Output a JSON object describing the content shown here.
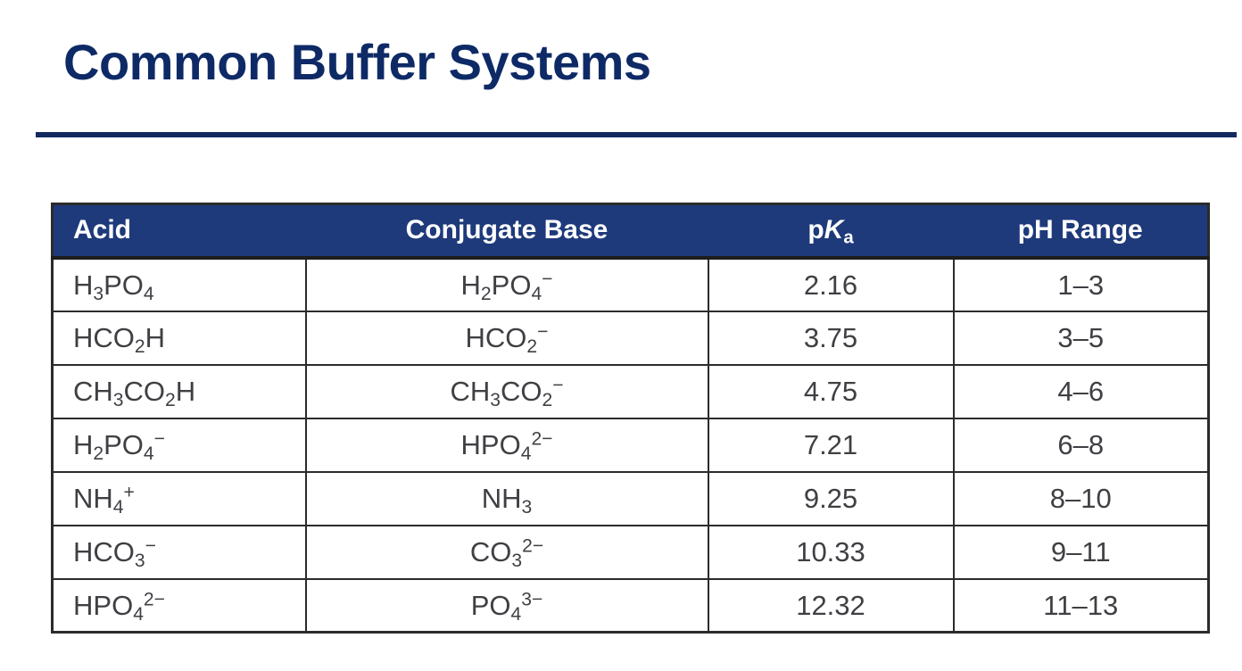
{
  "title": "Common Buffer Systems",
  "colors": {
    "navy_header": "#1e3a7b",
    "title_navy": "#0e2a66",
    "divider_navy": "#132a60",
    "body_text": "#3f3f44",
    "grid_line": "#2b2b2b",
    "header_text": "#ffffff"
  },
  "table": {
    "columns": [
      {
        "key": "acid",
        "label": "Acid",
        "align": "left"
      },
      {
        "key": "conjugate_base",
        "label": "Conjugate Base",
        "align": "center"
      },
      {
        "key": "pka",
        "label": "p*K*_a",
        "align": "center"
      },
      {
        "key": "ph_range",
        "label": "pH Range",
        "align": "center"
      }
    ],
    "rows": [
      {
        "acid": "H_3PO_4",
        "conjugate_base": "H_2PO_4^{−}",
        "pka": "2.16",
        "ph_range": "1–3"
      },
      {
        "acid": "HCO_2H",
        "conjugate_base": "HCO_2^{−}",
        "pka": "3.75",
        "ph_range": "3–5"
      },
      {
        "acid": "CH_3CO_2H",
        "conjugate_base": "CH_3CO_2^{−}",
        "pka": "4.75",
        "ph_range": "4–6"
      },
      {
        "acid": "H_2PO_4^{−}",
        "conjugate_base": "HPO_4^{2−}",
        "pka": "7.21",
        "ph_range": "6–8"
      },
      {
        "acid": "NH_4^{+}",
        "conjugate_base": "NH_3",
        "pka": "9.25",
        "ph_range": "8–10"
      },
      {
        "acid": "HCO_3^{−}",
        "conjugate_base": "CO_3^{2−}",
        "pka": "10.33",
        "ph_range": "9–11"
      },
      {
        "acid": "HPO_4^{2−}",
        "conjugate_base": "PO_4^{3−}",
        "pka": "12.32",
        "ph_range": "11–13"
      }
    ]
  }
}
